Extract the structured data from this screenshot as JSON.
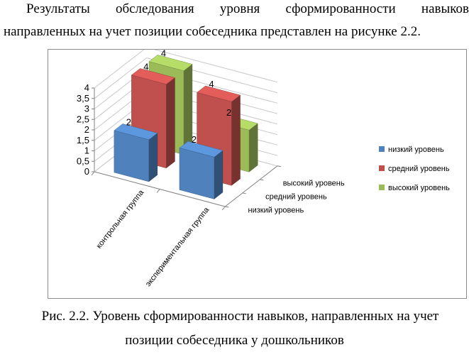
{
  "paragraph": {
    "line1_words": [
      "Результаты",
      "обследования",
      "уровня",
      "сформированности",
      "навыков"
    ],
    "line2": "направленных на учет позиции собеседника представлен на рисунке 2.2."
  },
  "chart_data": {
    "type": "bar",
    "subtype": "3d-clustered-column",
    "title": "",
    "categories": [
      "контрольная группа",
      "экспериментальная группа"
    ],
    "series": [
      {
        "name": "низкий уровень",
        "values": [
          2,
          2
        ],
        "color": "#4f81bd"
      },
      {
        "name": "средний уровень",
        "values": [
          4,
          4
        ],
        "color": "#c0504d"
      },
      {
        "name": "высокий уровень",
        "values": [
          4,
          2
        ],
        "color": "#9bbb59"
      }
    ],
    "depth_labels": [
      "низкий уровень",
      "средний уровень",
      "высокий уровень"
    ],
    "y_ticks": [
      "0",
      "0,5",
      "1",
      "1,5",
      "2",
      "2,5",
      "3",
      "3,5",
      "4"
    ],
    "ylim": [
      0,
      4
    ],
    "grid": true,
    "legend_position": "right"
  },
  "caption": {
    "line1": "Рис. 2.2. Уровень сформированности навыков, направленных на учет",
    "line2": "позиции собеседника у дошкольников"
  }
}
